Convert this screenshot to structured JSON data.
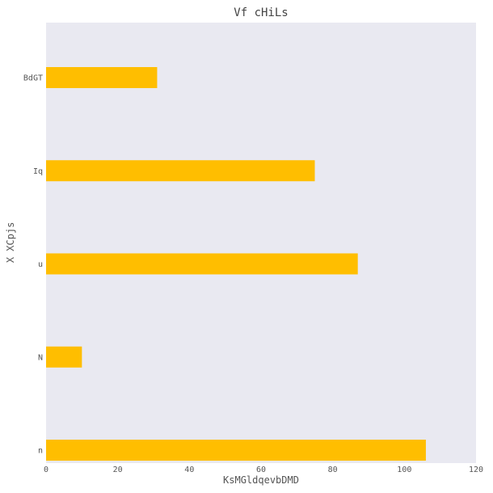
{
  "chart_data": {
    "type": "bar",
    "orientation": "horizontal",
    "title": "Vf cHiLs",
    "xlabel": "KsMGldqevbDMD",
    "ylabel": "X XCpjs",
    "categories": [
      "BdGT",
      "Iq",
      "u",
      "N",
      "n"
    ],
    "values": [
      31,
      75,
      87,
      10,
      106
    ],
    "xlim": [
      0,
      120
    ],
    "xticks": [
      0,
      20,
      40,
      60,
      80,
      100,
      120
    ],
    "grid": false,
    "colors": {
      "bar": "#FFBE00",
      "plot_background": "#E9E9F1"
    }
  }
}
